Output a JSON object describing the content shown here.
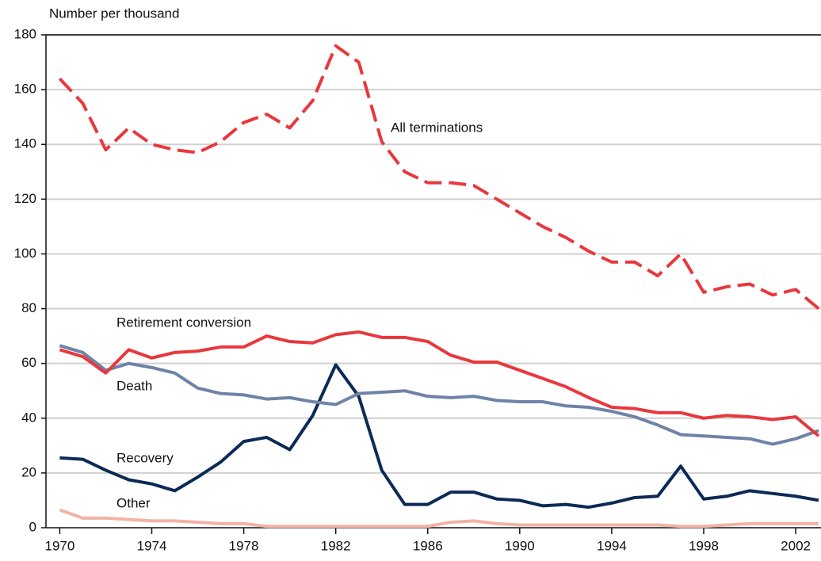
{
  "chart_data": {
    "type": "line",
    "y_axis_label": "Number per thousand",
    "x": [
      1970,
      1971,
      1972,
      1973,
      1974,
      1975,
      1976,
      1977,
      1978,
      1979,
      1980,
      1981,
      1982,
      1983,
      1984,
      1985,
      1986,
      1987,
      1988,
      1989,
      1990,
      1991,
      1992,
      1993,
      1994,
      1995,
      1996,
      1997,
      1998,
      1999,
      2000,
      2001,
      2002,
      2003
    ],
    "series": [
      {
        "name": "All terminations",
        "color": "#e8383d",
        "style": "dashed",
        "values": [
          164,
          155,
          138,
          146,
          140,
          138,
          137,
          141,
          148,
          151,
          146,
          156,
          176,
          170,
          141,
          130,
          126,
          126,
          125,
          120,
          115,
          110,
          106,
          101,
          97,
          97,
          92,
          100,
          86,
          88,
          89,
          85,
          87,
          80
        ]
      },
      {
        "name": "Retirement conversion",
        "color": "#e8383d",
        "style": "solid",
        "values": [
          65,
          62.5,
          56.5,
          65,
          62,
          64,
          64.5,
          66,
          66,
          70,
          68,
          67.5,
          70.5,
          71.5,
          69.5,
          69.5,
          68,
          63,
          60.5,
          60.5,
          57.5,
          54.5,
          51.5,
          47.5,
          44,
          43.5,
          42,
          42,
          40,
          41,
          40.5,
          39.5,
          40.5,
          33.5
        ]
      },
      {
        "name": "Death",
        "color": "#6e83a8",
        "style": "solid",
        "values": [
          66.5,
          64,
          57.5,
          60,
          58.5,
          56.5,
          51,
          49,
          48.5,
          47,
          47.5,
          46,
          45,
          49,
          49.5,
          50,
          48,
          47.5,
          48,
          46.5,
          46,
          46,
          44.5,
          44,
          42.5,
          40.5,
          37.5,
          34,
          33.5,
          33,
          32.5,
          30.5,
          32.5,
          35.5
        ]
      },
      {
        "name": "Recovery",
        "color": "#0c2a56",
        "style": "solid",
        "values": [
          25.5,
          25,
          21,
          17.5,
          16,
          13.5,
          18.5,
          24,
          31.5,
          33,
          28.5,
          41,
          59.5,
          48,
          21,
          8.5,
          8.5,
          13,
          13,
          10.5,
          10,
          8,
          8.5,
          7.5,
          9,
          11,
          11.5,
          22.5,
          10.5,
          11.5,
          13.5,
          12.5,
          11.5,
          10
        ]
      },
      {
        "name": "Other",
        "color": "#f2b3a6",
        "style": "solid",
        "values": [
          6.5,
          3.5,
          3.5,
          3,
          2.5,
          2.5,
          2,
          1.5,
          1.5,
          0.5,
          0.5,
          0.5,
          0.5,
          0.5,
          0.5,
          0.5,
          0.5,
          2,
          2.5,
          1.5,
          1,
          1,
          1,
          1,
          1,
          1,
          1,
          0.5,
          0.5,
          1,
          1.5,
          1.5,
          1.5,
          1.5
        ]
      }
    ],
    "xlim": [
      1969.4,
      2003.1
    ],
    "xticks": [
      1970,
      1974,
      1978,
      1982,
      1986,
      1990,
      1994,
      1998,
      2002
    ],
    "ylim": [
      0,
      180
    ],
    "yticks": [
      0,
      20,
      40,
      60,
      80,
      100,
      120,
      140,
      160,
      180
    ],
    "grid": true
  }
}
